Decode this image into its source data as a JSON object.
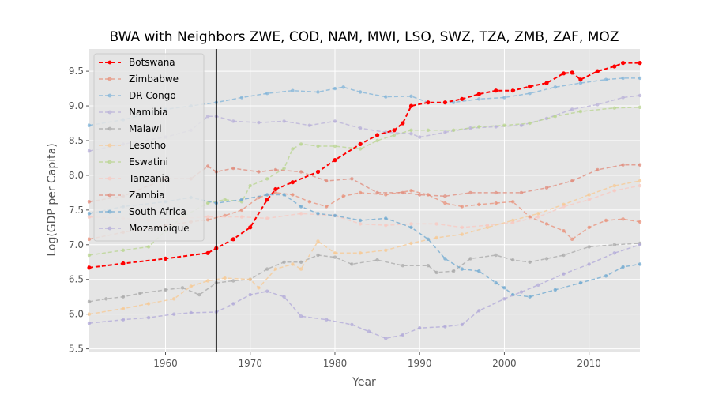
{
  "chart_data": {
    "type": "line",
    "title": "BWA with Neighbors ZWE, COD, NAM, MWI, LSO, SWZ, TZA, ZMB, ZAF, MOZ",
    "xlabel": "Year",
    "ylabel": "Log(GDP per Capita)",
    "xlim": [
      1951,
      2016
    ],
    "ylim": [
      5.45,
      9.82
    ],
    "xticks": [
      1960,
      1970,
      1980,
      1990,
      2000,
      2010
    ],
    "yticks": [
      5.5,
      6.0,
      6.5,
      7.0,
      7.5,
      8.0,
      8.5,
      9.0,
      9.5
    ],
    "vline_x": 1966,
    "grid": true,
    "legend_position": "top-left",
    "series": [
      {
        "name": "Botswana",
        "color": "#ff0000",
        "highlight": true,
        "points": [
          [
            1951,
            6.67
          ],
          [
            1955,
            6.73
          ],
          [
            1960,
            6.8
          ],
          [
            1965,
            6.88
          ],
          [
            1966,
            6.95
          ],
          [
            1968,
            7.08
          ],
          [
            1970,
            7.25
          ],
          [
            1972,
            7.65
          ],
          [
            1973,
            7.8
          ],
          [
            1975,
            7.9
          ],
          [
            1978,
            8.05
          ],
          [
            1980,
            8.22
          ],
          [
            1983,
            8.45
          ],
          [
            1985,
            8.58
          ],
          [
            1987,
            8.65
          ],
          [
            1988,
            8.75
          ],
          [
            1989,
            9.0
          ],
          [
            1991,
            9.05
          ],
          [
            1993,
            9.05
          ],
          [
            1995,
            9.1
          ],
          [
            1997,
            9.17
          ],
          [
            1999,
            9.22
          ],
          [
            2001,
            9.22
          ],
          [
            2003,
            9.28
          ],
          [
            2005,
            9.33
          ],
          [
            2007,
            9.47
          ],
          [
            2008,
            9.48
          ],
          [
            2009,
            9.38
          ],
          [
            2011,
            9.5
          ],
          [
            2013,
            9.57
          ],
          [
            2014,
            9.62
          ],
          [
            2016,
            9.62
          ]
        ]
      },
      {
        "name": "Zimbabwe",
        "color": "#e8907a",
        "points": [
          [
            1951,
            7.08
          ],
          [
            1955,
            7.18
          ],
          [
            1960,
            7.28
          ],
          [
            1963,
            7.33
          ],
          [
            1965,
            7.36
          ],
          [
            1967,
            7.42
          ],
          [
            1969,
            7.5
          ],
          [
            1971,
            7.68
          ],
          [
            1973,
            7.75
          ],
          [
            1975,
            7.72
          ],
          [
            1977,
            7.62
          ],
          [
            1979,
            7.55
          ],
          [
            1981,
            7.7
          ],
          [
            1983,
            7.75
          ],
          [
            1986,
            7.72
          ],
          [
            1989,
            7.78
          ],
          [
            1991,
            7.72
          ],
          [
            1993,
            7.6
          ],
          [
            1995,
            7.55
          ],
          [
            1997,
            7.58
          ],
          [
            1999,
            7.6
          ],
          [
            2001,
            7.62
          ],
          [
            2003,
            7.4
          ],
          [
            2005,
            7.3
          ],
          [
            2007,
            7.2
          ],
          [
            2008,
            7.08
          ],
          [
            2010,
            7.25
          ],
          [
            2012,
            7.35
          ],
          [
            2014,
            7.37
          ],
          [
            2016,
            7.33
          ]
        ]
      },
      {
        "name": "DR Congo",
        "color": "#7fb3d8",
        "points": [
          [
            1951,
            8.72
          ],
          [
            1955,
            8.8
          ],
          [
            1960,
            8.95
          ],
          [
            1963,
            9.0
          ],
          [
            1966,
            9.05
          ],
          [
            1969,
            9.12
          ],
          [
            1972,
            9.18
          ],
          [
            1975,
            9.22
          ],
          [
            1978,
            9.2
          ],
          [
            1980,
            9.25
          ],
          [
            1981,
            9.27
          ],
          [
            1983,
            9.2
          ],
          [
            1986,
            9.13
          ],
          [
            1989,
            9.14
          ],
          [
            1991,
            9.05
          ],
          [
            1994,
            9.05
          ],
          [
            1997,
            9.1
          ],
          [
            2000,
            9.12
          ],
          [
            2003,
            9.18
          ],
          [
            2006,
            9.27
          ],
          [
            2009,
            9.33
          ],
          [
            2012,
            9.38
          ],
          [
            2014,
            9.4
          ],
          [
            2016,
            9.4
          ]
        ]
      },
      {
        "name": "Namibia",
        "color": "#b8b0d8",
        "points": [
          [
            1951,
            8.35
          ],
          [
            1955,
            8.45
          ],
          [
            1960,
            8.55
          ],
          [
            1963,
            8.65
          ],
          [
            1965,
            8.85
          ],
          [
            1966,
            8.85
          ],
          [
            1968,
            8.78
          ],
          [
            1971,
            8.76
          ],
          [
            1974,
            8.78
          ],
          [
            1977,
            8.72
          ],
          [
            1980,
            8.78
          ],
          [
            1983,
            8.68
          ],
          [
            1986,
            8.62
          ],
          [
            1989,
            8.6
          ],
          [
            1990,
            8.55
          ],
          [
            1993,
            8.62
          ],
          [
            1996,
            8.68
          ],
          [
            1999,
            8.7
          ],
          [
            2002,
            8.72
          ],
          [
            2005,
            8.82
          ],
          [
            2008,
            8.95
          ],
          [
            2011,
            9.02
          ],
          [
            2014,
            9.12
          ],
          [
            2016,
            9.15
          ]
        ]
      },
      {
        "name": "Malawi",
        "color": "#a8a8a8",
        "points": [
          [
            1951,
            6.18
          ],
          [
            1953,
            6.22
          ],
          [
            1955,
            6.25
          ],
          [
            1957,
            6.3
          ],
          [
            1960,
            6.35
          ],
          [
            1962,
            6.38
          ],
          [
            1964,
            6.28
          ],
          [
            1966,
            6.45
          ],
          [
            1968,
            6.48
          ],
          [
            1970,
            6.5
          ],
          [
            1972,
            6.65
          ],
          [
            1974,
            6.75
          ],
          [
            1976,
            6.75
          ],
          [
            1978,
            6.85
          ],
          [
            1980,
            6.82
          ],
          [
            1982,
            6.72
          ],
          [
            1985,
            6.78
          ],
          [
            1988,
            6.7
          ],
          [
            1991,
            6.7
          ],
          [
            1992,
            6.6
          ],
          [
            1994,
            6.62
          ],
          [
            1996,
            6.8
          ],
          [
            1999,
            6.85
          ],
          [
            2001,
            6.78
          ],
          [
            2003,
            6.75
          ],
          [
            2005,
            6.8
          ],
          [
            2007,
            6.85
          ],
          [
            2010,
            6.97
          ],
          [
            2013,
            7.0
          ],
          [
            2016,
            7.02
          ]
        ]
      },
      {
        "name": "Lesotho",
        "color": "#f7c892",
        "points": [
          [
            1951,
            6.0
          ],
          [
            1955,
            6.08
          ],
          [
            1958,
            6.15
          ],
          [
            1961,
            6.22
          ],
          [
            1963,
            6.4
          ],
          [
            1965,
            6.48
          ],
          [
            1967,
            6.52
          ],
          [
            1970,
            6.5
          ],
          [
            1971,
            6.38
          ],
          [
            1973,
            6.65
          ],
          [
            1975,
            6.72
          ],
          [
            1976,
            6.65
          ],
          [
            1978,
            7.05
          ],
          [
            1980,
            6.88
          ],
          [
            1983,
            6.88
          ],
          [
            1986,
            6.92
          ],
          [
            1989,
            7.02
          ],
          [
            1992,
            7.1
          ],
          [
            1995,
            7.15
          ],
          [
            1998,
            7.25
          ],
          [
            2001,
            7.35
          ],
          [
            2004,
            7.45
          ],
          [
            2007,
            7.58
          ],
          [
            2010,
            7.72
          ],
          [
            2013,
            7.85
          ],
          [
            2016,
            7.92
          ]
        ]
      },
      {
        "name": "Eswatini",
        "color": "#b8d48f",
        "points": [
          [
            1951,
            6.85
          ],
          [
            1955,
            6.92
          ],
          [
            1958,
            6.97
          ],
          [
            1960,
            7.2
          ],
          [
            1962,
            7.4
          ],
          [
            1965,
            7.6
          ],
          [
            1967,
            7.65
          ],
          [
            1969,
            7.62
          ],
          [
            1970,
            7.85
          ],
          [
            1972,
            7.95
          ],
          [
            1974,
            8.1
          ],
          [
            1975,
            8.38
          ],
          [
            1976,
            8.45
          ],
          [
            1978,
            8.42
          ],
          [
            1980,
            8.42
          ],
          [
            1983,
            8.38
          ],
          [
            1985,
            8.5
          ],
          [
            1987,
            8.58
          ],
          [
            1989,
            8.65
          ],
          [
            1991,
            8.65
          ],
          [
            1994,
            8.65
          ],
          [
            1997,
            8.7
          ],
          [
            2000,
            8.72
          ],
          [
            2003,
            8.75
          ],
          [
            2006,
            8.85
          ],
          [
            2009,
            8.92
          ],
          [
            2013,
            8.97
          ],
          [
            2016,
            8.98
          ]
        ]
      },
      {
        "name": "Tanzania",
        "color": "#f8c8c0",
        "points": [
          [
            1951,
            7.4
          ],
          [
            1955,
            7.38
          ],
          [
            1958,
            7.35
          ],
          [
            1962,
            7.38
          ],
          [
            1965,
            7.4
          ],
          [
            1969,
            7.4
          ],
          [
            1972,
            7.38
          ],
          [
            1976,
            7.45
          ],
          [
            1980,
            7.42
          ],
          [
            1983,
            7.3
          ],
          [
            1986,
            7.28
          ],
          [
            1989,
            7.3
          ],
          [
            1992,
            7.3
          ],
          [
            1995,
            7.25
          ],
          [
            1998,
            7.28
          ],
          [
            2001,
            7.32
          ],
          [
            2004,
            7.4
          ],
          [
            2007,
            7.55
          ],
          [
            2010,
            7.65
          ],
          [
            2013,
            7.78
          ],
          [
            2016,
            7.85
          ]
        ]
      },
      {
        "name": "Zambia",
        "color": "#e08a7a",
        "points": [
          [
            1951,
            7.62
          ],
          [
            1955,
            7.7
          ],
          [
            1960,
            7.95
          ],
          [
            1963,
            7.95
          ],
          [
            1965,
            8.13
          ],
          [
            1966,
            8.05
          ],
          [
            1968,
            8.1
          ],
          [
            1971,
            8.05
          ],
          [
            1973,
            8.08
          ],
          [
            1976,
            8.05
          ],
          [
            1979,
            7.92
          ],
          [
            1982,
            7.95
          ],
          [
            1985,
            7.75
          ],
          [
            1988,
            7.75
          ],
          [
            1990,
            7.72
          ],
          [
            1993,
            7.7
          ],
          [
            1996,
            7.75
          ],
          [
            1999,
            7.75
          ],
          [
            2002,
            7.75
          ],
          [
            2005,
            7.82
          ],
          [
            2008,
            7.92
          ],
          [
            2011,
            8.08
          ],
          [
            2014,
            8.15
          ],
          [
            2016,
            8.15
          ]
        ]
      },
      {
        "name": "South Africa",
        "color": "#6ea8d0",
        "points": [
          [
            1951,
            7.45
          ],
          [
            1955,
            7.55
          ],
          [
            1960,
            7.62
          ],
          [
            1963,
            7.68
          ],
          [
            1966,
            7.6
          ],
          [
            1969,
            7.65
          ],
          [
            1972,
            7.72
          ],
          [
            1974,
            7.72
          ],
          [
            1976,
            7.55
          ],
          [
            1978,
            7.45
          ],
          [
            1980,
            7.42
          ],
          [
            1983,
            7.35
          ],
          [
            1986,
            7.38
          ],
          [
            1989,
            7.25
          ],
          [
            1991,
            7.08
          ],
          [
            1993,
            6.8
          ],
          [
            1995,
            6.65
          ],
          [
            1997,
            6.62
          ],
          [
            1999,
            6.45
          ],
          [
            2000,
            6.38
          ],
          [
            2001,
            6.28
          ],
          [
            2003,
            6.25
          ],
          [
            2006,
            6.35
          ],
          [
            2009,
            6.45
          ],
          [
            2012,
            6.55
          ],
          [
            2014,
            6.68
          ],
          [
            2016,
            6.72
          ]
        ]
      },
      {
        "name": "Mozambique",
        "color": "#b0a8d8",
        "points": [
          [
            1951,
            5.87
          ],
          [
            1955,
            5.92
          ],
          [
            1958,
            5.95
          ],
          [
            1961,
            6.0
          ],
          [
            1963,
            6.02
          ],
          [
            1966,
            6.03
          ],
          [
            1968,
            6.15
          ],
          [
            1970,
            6.28
          ],
          [
            1972,
            6.33
          ],
          [
            1974,
            6.25
          ],
          [
            1976,
            5.97
          ],
          [
            1979,
            5.92
          ],
          [
            1982,
            5.85
          ],
          [
            1984,
            5.75
          ],
          [
            1986,
            5.65
          ],
          [
            1988,
            5.7
          ],
          [
            1990,
            5.8
          ],
          [
            1993,
            5.82
          ],
          [
            1995,
            5.85
          ],
          [
            1997,
            6.05
          ],
          [
            2000,
            6.22
          ],
          [
            2002,
            6.32
          ],
          [
            2004,
            6.42
          ],
          [
            2007,
            6.58
          ],
          [
            2010,
            6.72
          ],
          [
            2013,
            6.88
          ],
          [
            2016,
            7.0
          ]
        ]
      }
    ]
  }
}
